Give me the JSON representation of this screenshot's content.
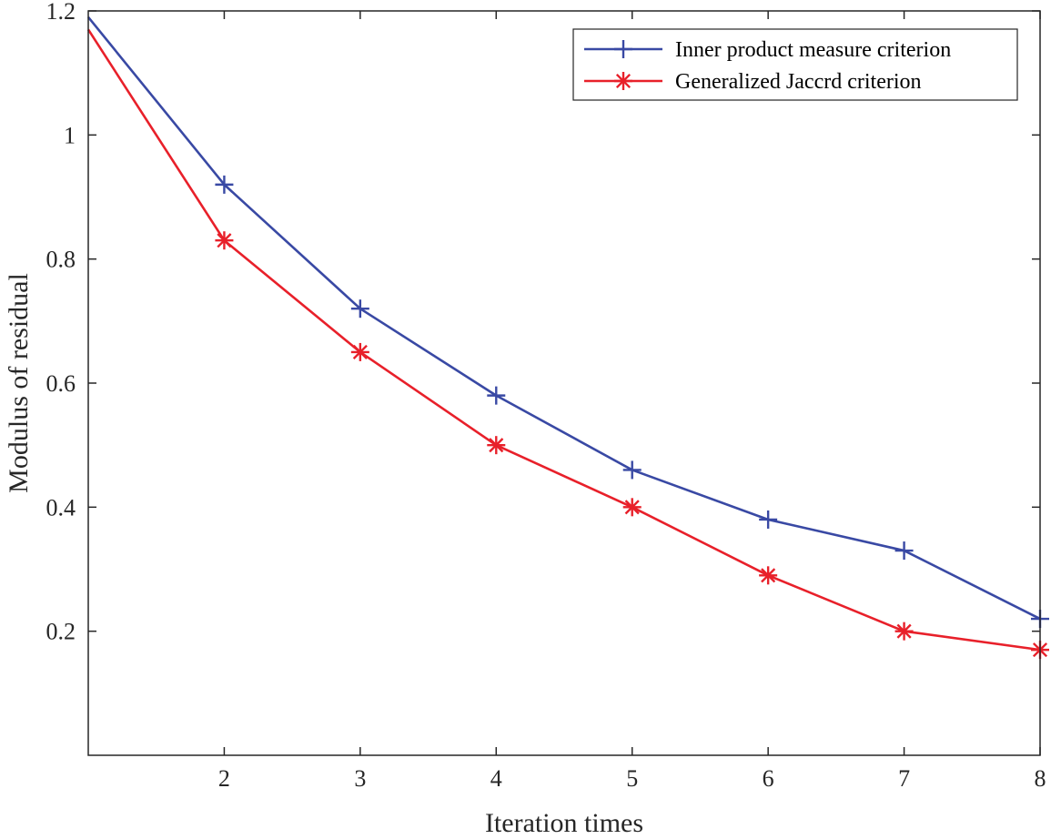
{
  "chart_data": {
    "type": "line",
    "title": "",
    "xlabel": "Iteration times",
    "ylabel": "Modulus of residual",
    "xlim": [
      1,
      8
    ],
    "ylim": [
      0,
      1.2
    ],
    "xticks": [
      2,
      3,
      4,
      5,
      6,
      7,
      8
    ],
    "xtick_labels": [
      "2",
      "3",
      "4",
      "5",
      "6",
      "7",
      "8"
    ],
    "yticks": [
      0.2,
      0.4,
      0.6,
      0.8,
      1,
      1.2
    ],
    "ytick_labels": [
      "0.2",
      "0.4",
      "0.6",
      "0.8",
      "1",
      "1.2"
    ],
    "grid": false,
    "legend_position": "top-right",
    "x": [
      1,
      2,
      3,
      4,
      5,
      6,
      7,
      8
    ],
    "series": [
      {
        "name": "Inner product measure criterion",
        "color": "#3949a4",
        "marker": "plus",
        "values": [
          1.19,
          0.92,
          0.72,
          0.58,
          0.46,
          0.38,
          0.33,
          0.22
        ]
      },
      {
        "name": "Generalized Jaccrd criterion",
        "color": "#e8202a",
        "marker": "asterisk",
        "values": [
          1.17,
          0.83,
          0.65,
          0.5,
          0.4,
          0.29,
          0.2,
          0.17
        ]
      }
    ]
  }
}
